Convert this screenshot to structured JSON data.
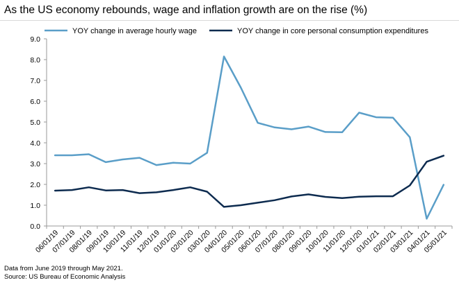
{
  "title": "As the US economy rebounds, wage and inflation growth are on the rise (%)",
  "footnote": "Data from June 2019 through May 2021.",
  "source": "Source: US Bureau of Economic Analysis",
  "colors": {
    "wage": "#5a9ec8",
    "pce": "#0d2b4f",
    "axis": "#999999"
  },
  "chart_data": {
    "type": "line",
    "title": "As the US economy rebounds, wage and inflation growth are on the rise (%)",
    "xlabel": "",
    "ylabel": "",
    "ylim": [
      0,
      9
    ],
    "yticks": [
      "0.0",
      "1.0",
      "2.0",
      "3.0",
      "4.0",
      "5.0",
      "6.0",
      "7.0",
      "8.0",
      "9.0"
    ],
    "grid": false,
    "legend_position": "top",
    "x": [
      "06/01/19",
      "07/01/19",
      "08/01/19",
      "09/01/19",
      "10/01/19",
      "11/01/19",
      "12/01/19",
      "01/01/20",
      "02/01/20",
      "03/01/20",
      "04/01/20",
      "05/01/20",
      "06/01/20",
      "07/01/20",
      "08/01/20",
      "09/01/20",
      "10/01/20",
      "11/01/20",
      "12/01/20",
      "01/01/21",
      "02/01/21",
      "03/01/21",
      "04/01/21",
      "05/01/21"
    ],
    "series": [
      {
        "name": "YOY change in average hourly wage",
        "color": "#5a9ec8",
        "values": [
          3.4,
          3.4,
          3.45,
          3.07,
          3.2,
          3.28,
          2.93,
          3.04,
          3.0,
          3.52,
          8.15,
          6.65,
          4.96,
          4.74,
          4.65,
          4.78,
          4.52,
          4.51,
          5.45,
          5.23,
          5.21,
          4.27,
          0.35,
          1.98
        ]
      },
      {
        "name": "YOY change in core personal consumption expenditures",
        "color": "#0d2b4f",
        "values": [
          1.7,
          1.73,
          1.86,
          1.71,
          1.73,
          1.58,
          1.62,
          1.73,
          1.86,
          1.65,
          0.92,
          1.0,
          1.12,
          1.24,
          1.42,
          1.52,
          1.4,
          1.34,
          1.41,
          1.43,
          1.43,
          1.95,
          3.09,
          3.38
        ]
      }
    ]
  }
}
